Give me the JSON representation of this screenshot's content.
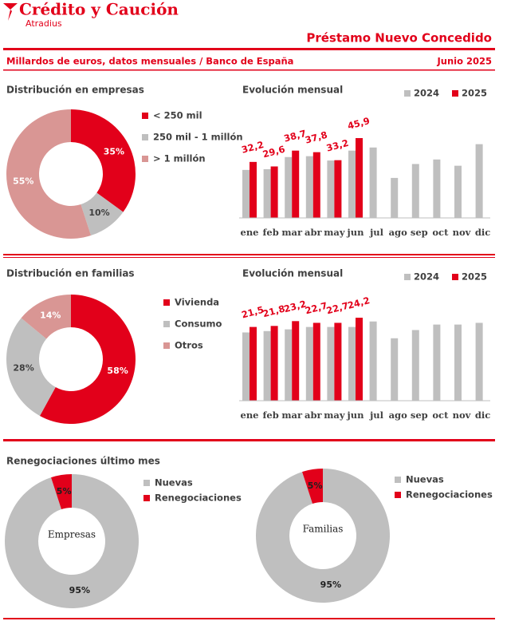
{
  "header": {
    "brand": "Crédito y Caución",
    "brand_sub": "Atradius",
    "title": "Préstamo Nuevo Concedido",
    "subtitle": "Millardos de euros, datos mensuales / Banco de España",
    "date": "Junio 2025"
  },
  "section_title": "Renegociaciones último mes",
  "chart_data": [
    {
      "type": "donut",
      "title": "Distribución en empresas",
      "categories": [
        "< 250 mil",
        "250 mil - 1 millón",
        "> 1 millón"
      ],
      "values": [
        35,
        10,
        55
      ],
      "value_labels": [
        "35%",
        "10%",
        "55%"
      ],
      "colors": [
        "#e2001a",
        "#bfbfbf",
        "#d99694"
      ]
    },
    {
      "type": "bar",
      "title": "Evolución mensual",
      "categories": [
        "ene",
        "feb",
        "mar",
        "abr",
        "may",
        "jun",
        "jul",
        "ago",
        "sep",
        "oct",
        "nov",
        "dic"
      ],
      "series": [
        {
          "name": "2024",
          "color": "#bfbfbf",
          "values": [
            27.6,
            28,
            35,
            35.5,
            33,
            38.7,
            40.5,
            23,
            31,
            33.6,
            30,
            42.4
          ]
        },
        {
          "name": "2025",
          "color": "#e2001a",
          "values": [
            32.2,
            29.6,
            38.7,
            37.8,
            33.2,
            45.9,
            null,
            null,
            null,
            null,
            null,
            null
          ],
          "value_labels": [
            "32,2",
            "29,6",
            "38,7",
            "37,8",
            "33,2",
            "45,9",
            null,
            null,
            null,
            null,
            null,
            null
          ]
        }
      ]
    },
    {
      "type": "donut",
      "title": "Distribución en familias",
      "categories": [
        "Vivienda",
        "Consumo",
        "Otros"
      ],
      "values": [
        58,
        28,
        14
      ],
      "value_labels": [
        "58%",
        "28%",
        "14%"
      ],
      "colors": [
        "#e2001a",
        "#bfbfbf",
        "#d99694"
      ]
    },
    {
      "type": "bar",
      "title": "Evolución mensual",
      "categories": [
        "ene",
        "feb",
        "mar",
        "abr",
        "may",
        "jun",
        "jul",
        "ago",
        "sep",
        "oct",
        "nov",
        "dic"
      ],
      "series": [
        {
          "name": "2024",
          "color": "#bfbfbf",
          "values": [
            19.9,
            20.3,
            20.8,
            21.5,
            21.5,
            21.5,
            23.1,
            18.2,
            20.6,
            22.2,
            22.2,
            22.7
          ]
        },
        {
          "name": "2025",
          "color": "#e2001a",
          "values": [
            21.5,
            21.8,
            23.2,
            22.7,
            22.7,
            24.2,
            null,
            null,
            null,
            null,
            null,
            null
          ],
          "value_labels": [
            "21,5",
            "21,8",
            "23,2",
            "22,7",
            "22,7",
            "24,2",
            null,
            null,
            null,
            null,
            null,
            null
          ]
        }
      ]
    },
    {
      "type": "donut",
      "center_label": "Empresas",
      "categories": [
        "Nuevas",
        "Renegociaciones"
      ],
      "values": [
        95,
        5
      ],
      "value_labels": [
        "95%",
        "5%"
      ],
      "colors": [
        "#bfbfbf",
        "#e2001a"
      ]
    },
    {
      "type": "donut",
      "center_label": "Familias",
      "categories": [
        "Nuevas",
        "Renegociaciones"
      ],
      "values": [
        95,
        5
      ],
      "value_labels": [
        "95%",
        "5%"
      ],
      "colors": [
        "#bfbfbf",
        "#e2001a"
      ]
    }
  ]
}
